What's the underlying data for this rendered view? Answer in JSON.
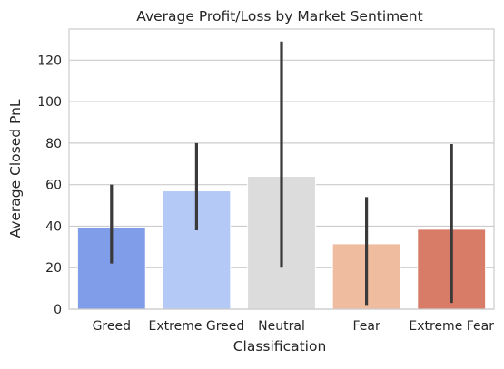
{
  "chart_data": {
    "type": "bar",
    "title": "Average Profit/Loss by Market Sentiment",
    "xlabel": "Classification",
    "ylabel": "Average Closed PnL",
    "categories": [
      "Greed",
      "Extreme Greed",
      "Neutral",
      "Fear",
      "Extreme Fear"
    ],
    "values": [
      39.5,
      57,
      64,
      31.5,
      38.5
    ],
    "error_low": [
      22,
      38,
      20,
      2,
      3
    ],
    "error_high": [
      60,
      80,
      129,
      54,
      79.5
    ],
    "colors": [
      "#7f9de9",
      "#b4c9f6",
      "#dcdcdc",
      "#efbca0",
      "#d87c67"
    ],
    "ylim": [
      0,
      135
    ],
    "yticks": [
      0,
      20,
      40,
      60,
      80,
      100,
      120
    ],
    "grid": true,
    "legend": "none"
  }
}
